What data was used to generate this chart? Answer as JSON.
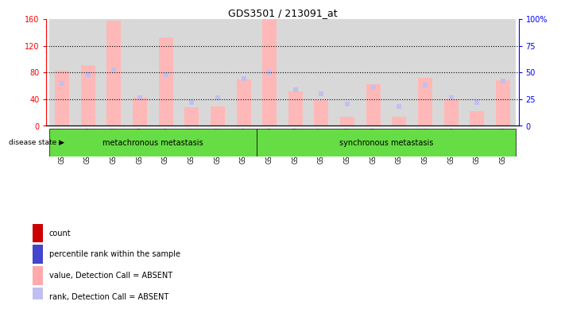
{
  "title": "GDS3501 / 213091_at",
  "samples": [
    "GSM277231",
    "GSM277236",
    "GSM277238",
    "GSM277239",
    "GSM277246",
    "GSM277248",
    "GSM277253",
    "GSM277256",
    "GSM277466",
    "GSM277469",
    "GSM277477",
    "GSM277478",
    "GSM277479",
    "GSM277481",
    "GSM277494",
    "GSM277646",
    "GSM277647",
    "GSM277648"
  ],
  "values": [
    82,
    91,
    158,
    42,
    132,
    28,
    29,
    70,
    160,
    52,
    38,
    14,
    62,
    13,
    72,
    40,
    22,
    68
  ],
  "ranks": [
    40,
    48,
    52,
    26,
    48,
    22,
    26,
    44,
    50,
    34,
    30,
    20,
    36,
    18,
    38,
    26,
    22,
    42
  ],
  "group1_label": "metachronous metastasis",
  "group2_label": "synchronous metastasis",
  "group1_count": 8,
  "group2_count": 10,
  "ylim_left": [
    0,
    160
  ],
  "ylim_right": [
    0,
    100
  ],
  "yticks_left": [
    0,
    40,
    80,
    120,
    160
  ],
  "yticks_right": [
    0,
    25,
    50,
    75,
    100
  ],
  "yticklabels_left": [
    "0",
    "40",
    "80",
    "120",
    "160"
  ],
  "yticklabels_right": [
    "0",
    "25",
    "50",
    "75",
    "100%"
  ],
  "bar_color_absent": "#ffb8b8",
  "rank_color_absent": "#c0c0f0",
  "bg_color": "#d8d8d8",
  "group_color": "#66dd44",
  "legend_items": [
    {
      "color": "#cc0000",
      "label": "count"
    },
    {
      "color": "#4444cc",
      "label": "percentile rank within the sample"
    },
    {
      "color": "#ffaaaa",
      "label": "value, Detection Call = ABSENT"
    },
    {
      "color": "#c0c0f0",
      "label": "rank, Detection Call = ABSENT"
    }
  ]
}
